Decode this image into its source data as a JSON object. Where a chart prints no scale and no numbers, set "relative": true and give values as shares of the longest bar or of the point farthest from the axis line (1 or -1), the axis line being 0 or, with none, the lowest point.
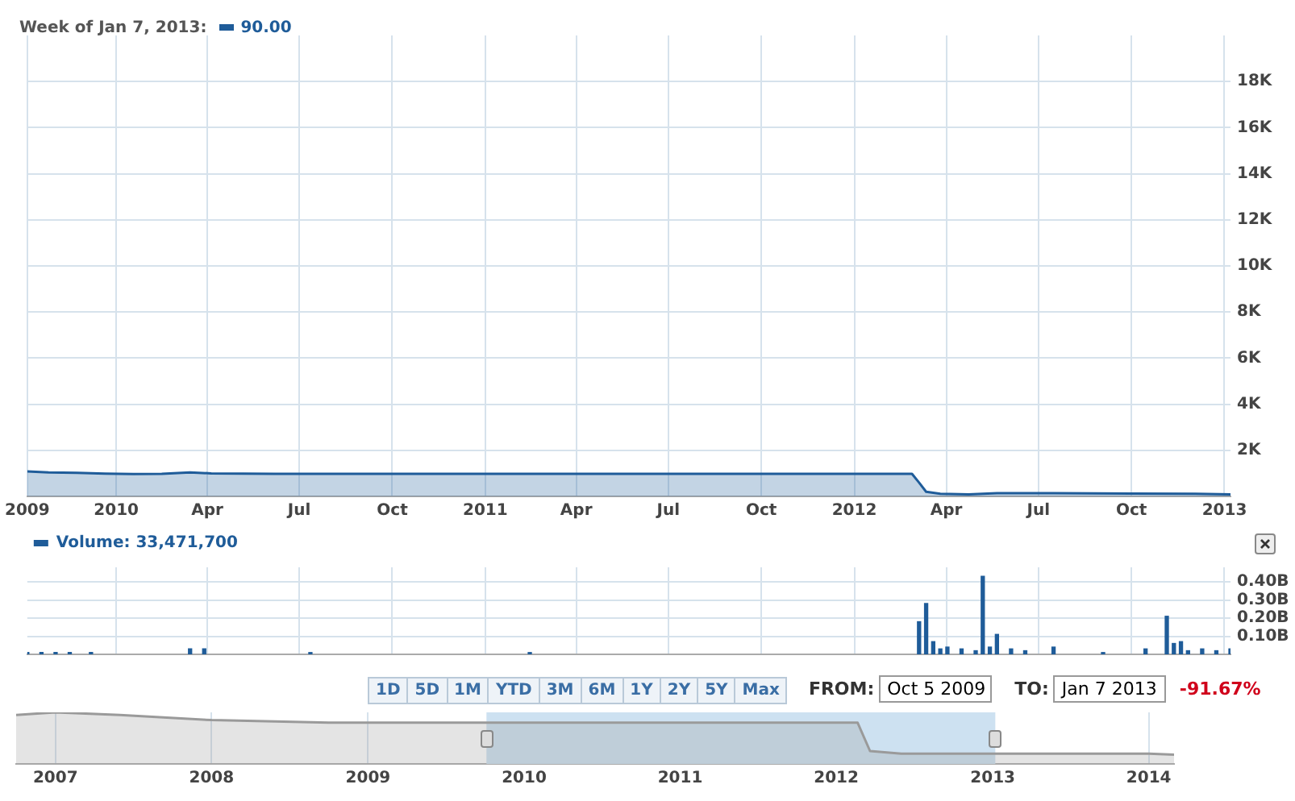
{
  "chart_data": [
    {
      "type": "area",
      "title": "Week of Jan 7, 2013:",
      "annotations": [
        "90.00"
      ],
      "x": [
        "2009-10-05",
        "2009-10-26",
        "2009-11-23",
        "2009-12-21",
        "2010-01-18",
        "2010-02-15",
        "2010-03-15",
        "2010-04-05",
        "2010-06-07",
        "2010-09-06",
        "2011-01-03",
        "2011-06-06",
        "2011-10-03",
        "2012-01-02",
        "2012-02-27",
        "2012-03-05",
        "2012-03-12",
        "2012-03-26",
        "2012-04-23",
        "2012-05-21",
        "2012-07-16",
        "2012-10-01",
        "2012-12-03",
        "2013-01-07"
      ],
      "series": [
        {
          "color": "#1f5c99",
          "values": [
            1080,
            1040,
            1020,
            990,
            970,
            980,
            1040,
            1000,
            980,
            980,
            980,
            980,
            980,
            980,
            980,
            600,
            200,
            110,
            90,
            140,
            140,
            120,
            110,
            90
          ]
        }
      ],
      "xlim": [
        "2009-10-05",
        "2013-01-07"
      ],
      "xticks": [
        {
          "value": "2009-10-05",
          "label": "2009"
        },
        {
          "value": "2010-01-01",
          "label": "2010"
        },
        {
          "value": "2010-04-01",
          "label": "Apr"
        },
        {
          "value": "2010-07-01",
          "label": "Jul"
        },
        {
          "value": "2010-10-01",
          "label": "Oct"
        },
        {
          "value": "2011-01-01",
          "label": "2011"
        },
        {
          "value": "2011-04-01",
          "label": "Apr"
        },
        {
          "value": "2011-07-01",
          "label": "Jul"
        },
        {
          "value": "2011-10-01",
          "label": "Oct"
        },
        {
          "value": "2012-01-01",
          "label": "2012"
        },
        {
          "value": "2012-04-01",
          "label": "Apr"
        },
        {
          "value": "2012-07-01",
          "label": "Jul"
        },
        {
          "value": "2012-10-01",
          "label": "Oct"
        },
        {
          "value": "2013-01-01",
          "label": "2013"
        }
      ],
      "ylim": [
        0,
        20000
      ],
      "yticks": [
        {
          "value": 2000,
          "label": "2K"
        },
        {
          "value": 4000,
          "label": "4K"
        },
        {
          "value": 6000,
          "label": "6K"
        },
        {
          "value": 8000,
          "label": "8K"
        },
        {
          "value": 10000,
          "label": "10K"
        },
        {
          "value": 12000,
          "label": "12K"
        },
        {
          "value": 14000,
          "label": "14K"
        },
        {
          "value": 16000,
          "label": "16K"
        },
        {
          "value": 18000,
          "label": "18K"
        }
      ],
      "grid": true
    },
    {
      "type": "bar",
      "legend": "top left",
      "x": [
        "2009-10-05",
        "2009-10-19",
        "2009-11-02",
        "2009-11-16",
        "2009-12-07",
        "2010-03-15",
        "2010-03-29",
        "2010-07-12",
        "2011-02-14",
        "2012-03-05",
        "2012-03-12",
        "2012-03-19",
        "2012-03-26",
        "2012-04-02",
        "2012-04-16",
        "2012-04-30",
        "2012-05-07",
        "2012-05-14",
        "2012-05-21",
        "2012-06-04",
        "2012-06-18",
        "2012-07-16",
        "2012-09-03",
        "2012-10-15",
        "2012-11-05",
        "2012-11-12",
        "2012-11-19",
        "2012-11-26",
        "2012-12-10",
        "2012-12-24",
        "2013-01-07"
      ],
      "series": [
        {
          "name": "Volume: 33,471,700",
          "color": "#1f5c99",
          "values": [
            0.01,
            0.01,
            0.01,
            0.01,
            0.01,
            0.03,
            0.03,
            0.01,
            0.01,
            0.18,
            0.28,
            0.07,
            0.03,
            0.04,
            0.03,
            0.02,
            0.43,
            0.04,
            0.11,
            0.03,
            0.02,
            0.04,
            0.01,
            0.03,
            0.21,
            0.06,
            0.07,
            0.02,
            0.03,
            0.02,
            0.03
          ]
        }
      ],
      "xlim": [
        "2009-10-05",
        "2013-01-07"
      ],
      "xticks": [
        {
          "value": "2010-01-01",
          "label": null
        },
        {
          "value": "2010-04-01",
          "label": null
        },
        {
          "value": "2010-07-01",
          "label": null
        },
        {
          "value": "2010-10-01",
          "label": null
        },
        {
          "value": "2011-01-01",
          "label": null
        },
        {
          "value": "2011-04-01",
          "label": null
        },
        {
          "value": "2011-07-01",
          "label": null
        },
        {
          "value": "2011-10-01",
          "label": null
        },
        {
          "value": "2012-01-01",
          "label": null
        },
        {
          "value": "2012-04-01",
          "label": null
        },
        {
          "value": "2012-07-01",
          "label": null
        },
        {
          "value": "2012-10-01",
          "label": null
        },
        {
          "value": "2013-01-01",
          "label": null
        }
      ],
      "ylim": [
        0,
        0.48
      ],
      "yticks": [
        {
          "value": 0.1,
          "label": "0.10B"
        },
        {
          "value": 0.2,
          "label": "0.20B"
        },
        {
          "value": 0.3,
          "label": "0.30B"
        },
        {
          "value": 0.4,
          "label": "0.40B"
        }
      ],
      "tick_labels": "y",
      "grid": true
    },
    {
      "type": "other",
      "annotations": [
        "1D",
        "5D",
        "1M",
        "YTD",
        "3M",
        "6M",
        "1Y",
        "2Y",
        "5Y",
        "Max",
        "FROM:",
        "Oct 5 2009",
        "TO:",
        "Jan 7 2013",
        "-91.67%"
      ]
    },
    {
      "type": "area",
      "relative": true,
      "x": [
        "2006-10-01",
        "2007-01-01",
        "2007-06-01",
        "2008-01-01",
        "2008-10-01",
        "2009-06-01",
        "2010-06-01",
        "2011-06-01",
        "2012-02-20",
        "2012-03-20",
        "2012-06-01",
        "2013-01-01",
        "2014-01-01",
        "2014-03-01"
      ],
      "series": [
        {
          "color": "#9a9a9a",
          "values": [
            0.95,
            1,
            0.95,
            0.85,
            0.8,
            0.8,
            0.8,
            0.8,
            0.8,
            0.25,
            0.2,
            0.2,
            0.2,
            0.18
          ]
        }
      ],
      "xlim": [
        "2006-10-01",
        "2014-03-01"
      ],
      "xticks": [
        {
          "value": "2007-01-01",
          "label": "2007"
        },
        {
          "value": "2008-01-01",
          "label": "2008"
        },
        {
          "value": "2009-01-01",
          "label": "2009"
        },
        {
          "value": "2010-01-01",
          "label": "2010"
        },
        {
          "value": "2011-01-01",
          "label": "2011"
        },
        {
          "value": "2012-01-01",
          "label": "2012"
        },
        {
          "value": "2013-01-01",
          "label": "2013"
        },
        {
          "value": "2014-01-01",
          "label": "2014"
        }
      ],
      "bands": [
        {
          "axis": "x",
          "from": "2009-10-05",
          "to": "2013-01-07",
          "color": "#cde1f1"
        }
      ],
      "tick_labels": "x",
      "grid": "x"
    }
  ]
}
